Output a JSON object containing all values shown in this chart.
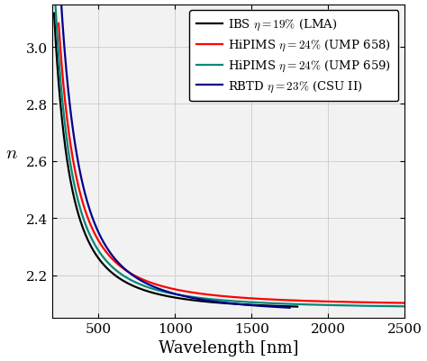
{
  "title": "",
  "xlabel": "Wavelength [nm]",
  "ylabel": "$n$",
  "xlim": [
    200,
    2500
  ],
  "ylim": [
    2.05,
    3.15
  ],
  "xticks": [
    500,
    1000,
    1500,
    2000,
    2500
  ],
  "yticks": [
    2.2,
    2.4,
    2.6,
    2.8,
    3.0
  ],
  "grid_color": "#d0d0d0",
  "background_color": "#f2f2f2",
  "lines": [
    {
      "label": "IBS $\\eta = 19\\%$ (LMA)",
      "color": "#000000",
      "A": 2.075,
      "B": 0.046,
      "C": 0.0,
      "lw": 1.6,
      "wl_start": 210,
      "wl_end": 1800
    },
    {
      "label": "HiPIMS $\\eta = 24\\%$ (UMP 658)",
      "color": "#ff0000",
      "A": 2.093,
      "B": 0.057,
      "C": 0.0,
      "lw": 1.6,
      "wl_start": 240,
      "wl_end": 2500
    },
    {
      "label": "HiPIMS $\\eta = 24\\%$ (UMP 659)",
      "color": "#008878",
      "A": 2.082,
      "B": 0.051,
      "C": 0.0,
      "lw": 1.6,
      "wl_start": 210,
      "wl_end": 2500
    },
    {
      "label": "RBTD $\\eta = 23\\%$ (CSU II)",
      "color": "#00008b",
      "A": 2.062,
      "B": 0.072,
      "C": 0.0,
      "lw": 1.6,
      "wl_start": 210,
      "wl_end": 1750
    }
  ],
  "legend_fontsize": 9.5,
  "axis_fontsize": 13,
  "tick_fontsize": 11
}
